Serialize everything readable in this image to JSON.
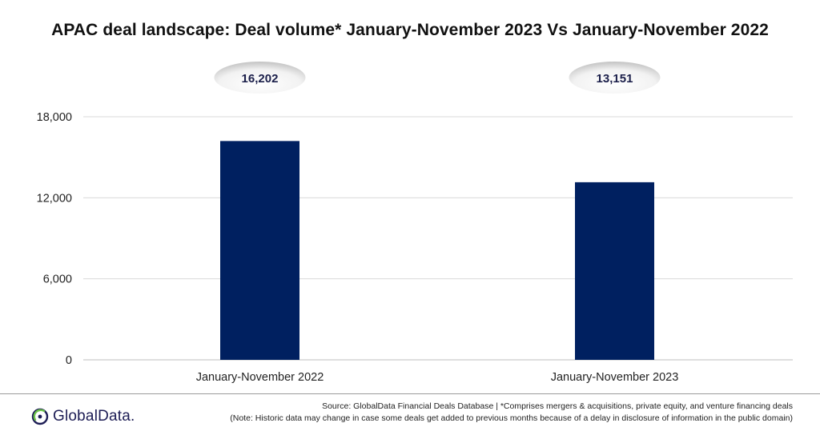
{
  "title": "APAC deal landscape: Deal volume* January-November 2023 Vs January-November 2022",
  "colors": {
    "bar": "#002060",
    "grid": "#d9d9d9",
    "axis": "#bfbfbf",
    "label_text": "#1b1f4a"
  },
  "chart_data": {
    "type": "bar",
    "categories": [
      "January-November 2022",
      "January-November 2023"
    ],
    "values": [
      16202,
      13151
    ],
    "data_labels": [
      "16,202",
      "13,151"
    ],
    "title": "APAC deal landscape: Deal volume* January-November 2023 Vs January-November 2022",
    "xlabel": "",
    "ylabel": "",
    "ylim": [
      0,
      18000
    ],
    "yticks": [
      0,
      6000,
      12000,
      18000
    ],
    "ytick_labels": [
      "0",
      "6,000",
      "12,000",
      "18,000"
    ],
    "grid": true,
    "legend": "none"
  },
  "footer": {
    "source_line": "Source: GlobalData Financial Deals Database | *Comprises mergers & acquisitions, private equity, and venture financing deals",
    "note_line": "(Note: Historic data may change in case some deals get added to previous months because of a delay in disclosure of information in the public domain)",
    "logo_text": "GlobalData.",
    "logo_icon": "globaldata-logo-icon"
  }
}
